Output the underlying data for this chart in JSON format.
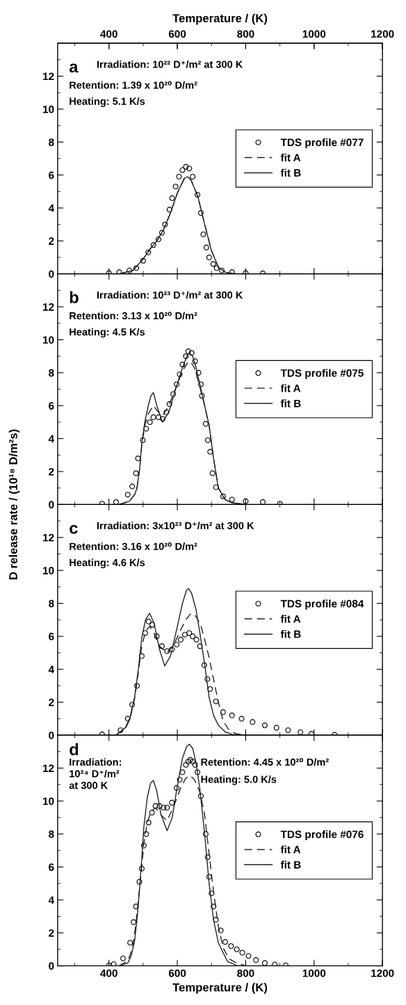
{
  "chart_data": [
    {
      "type": "line",
      "xlim": [
        250,
        1200
      ],
      "x2lim": [
        250,
        1200
      ],
      "x2ticks": [
        400,
        600,
        800,
        1000,
        1200
      ],
      "x2label": "Temperature / (K)",
      "tick_labels": "y",
      "ylim": [
        0,
        14
      ],
      "yticks": [
        0,
        2,
        4,
        6,
        8,
        10,
        12
      ],
      "legend": "right",
      "annotations": [
        "a",
        "Irradiation: 10²² D⁺/m² at 300 K",
        "Retention: 1.39 x 10²⁰ D/m²",
        "Heating: 5.1 K/s"
      ],
      "series": [
        {
          "name": "TDS profile #077",
          "type": "scatter",
          "marker": "circle",
          "color": "#000000",
          "x": [
            400,
            430,
            460,
            480,
            500,
            515,
            530,
            545,
            555,
            564,
            577,
            585,
            595,
            605,
            615,
            625,
            635,
            645,
            659,
            669,
            676,
            685,
            693,
            705,
            715,
            730,
            760,
            800,
            850
          ],
          "values": [
            0.05,
            0.1,
            0.2,
            0.35,
            0.8,
            1.3,
            1.75,
            2.1,
            2.5,
            3.0,
            3.9,
            4.6,
            5.3,
            5.9,
            6.3,
            6.5,
            6.4,
            5.9,
            4.8,
            3.7,
            2.4,
            1.6,
            1.0,
            0.6,
            0.35,
            0.2,
            0.1,
            0.05,
            0.03
          ]
        },
        {
          "name": "fit A",
          "line_style": "dashed",
          "color": "#222222",
          "x": [
            430,
            470,
            500,
            520,
            540,
            560,
            580,
            600,
            620,
            630,
            640,
            660,
            680,
            700,
            720,
            740,
            770,
            1000
          ],
          "values": [
            0,
            0.2,
            0.9,
            1.5,
            2.0,
            2.7,
            3.7,
            4.9,
            5.75,
            5.85,
            5.7,
            4.7,
            3.0,
            1.4,
            0.4,
            0.1,
            0,
            0
          ]
        },
        {
          "name": "fit B",
          "line_style": "solid",
          "color": "#222222",
          "x": [
            430,
            470,
            500,
            520,
            540,
            560,
            580,
            600,
            620,
            630,
            640,
            660,
            680,
            700,
            720,
            740,
            770,
            1000
          ],
          "values": [
            0,
            0.2,
            0.9,
            1.5,
            2.0,
            2.7,
            3.7,
            4.9,
            5.8,
            5.9,
            5.7,
            4.7,
            3.0,
            1.4,
            0.4,
            0.1,
            0,
            0
          ]
        }
      ]
    },
    {
      "type": "line",
      "xlim": [
        250,
        1200
      ],
      "tick_labels": "y",
      "ylim": [
        0,
        14
      ],
      "yticks": [
        0,
        2,
        4,
        6,
        8,
        10,
        12
      ],
      "ylabel": "D release rate / (10¹⁸ D/m²s)",
      "legend": "right",
      "annotations": [
        "b",
        "Irradiation: 10²³ D⁺/m² at 300 K",
        "Retention: 3.13 x 10²⁰ D/m²",
        "Heating: 4.5 K/s"
      ],
      "series": [
        {
          "name": "TDS profile #075",
          "type": "scatter",
          "marker": "circle",
          "color": "#000000",
          "x": [
            380,
            421,
            455,
            468,
            479,
            485,
            499,
            509,
            520,
            530,
            545,
            557,
            568,
            577,
            588,
            598,
            607,
            615,
            625,
            632,
            642,
            652,
            662,
            669,
            672,
            683,
            689,
            696,
            703,
            713,
            734,
            760,
            800,
            850,
            900
          ],
          "values": [
            0.05,
            0.15,
            0.6,
            1.1,
            1.9,
            2.8,
            3.9,
            4.6,
            5.0,
            5.3,
            5.3,
            5.2,
            5.6,
            6.1,
            6.7,
            7.3,
            7.9,
            8.5,
            9.0,
            9.3,
            9.2,
            8.7,
            8.0,
            7.3,
            6.6,
            4.9,
            3.9,
            3.2,
            1.9,
            1.05,
            0.5,
            0.3,
            0.2,
            0.15,
            0.05
          ]
        },
        {
          "name": "fit A",
          "line_style": "dashed",
          "color": "#222222",
          "x": [
            430,
            460,
            475,
            482,
            490,
            496,
            505,
            515,
            530,
            545,
            557,
            575,
            598,
            615,
            630,
            638,
            650,
            665,
            680,
            693,
            706,
            720,
            740,
            760,
            800
          ],
          "values": [
            0,
            0.2,
            0.6,
            1.0,
            2.2,
            3.6,
            4.8,
            5.5,
            6.0,
            5.6,
            5.4,
            6.0,
            7.2,
            8.1,
            8.6,
            8.7,
            8.3,
            7.2,
            6.0,
            4.8,
            2.8,
            1.0,
            0.3,
            0.1,
            0
          ]
        },
        {
          "name": "fit B",
          "line_style": "solid",
          "color": "#222222",
          "x": [
            430,
            460,
            475,
            482,
            490,
            496,
            505,
            515,
            523,
            530,
            540,
            557,
            575,
            598,
            615,
            630,
            635,
            645,
            655,
            667,
            680,
            693,
            706,
            720,
            740,
            760,
            800
          ],
          "values": [
            0,
            0.2,
            0.6,
            1.0,
            2.2,
            3.7,
            5.0,
            6.0,
            6.6,
            6.8,
            6.0,
            5.0,
            5.6,
            7.2,
            8.3,
            9.1,
            9.2,
            9.0,
            8.3,
            7.2,
            6.0,
            4.8,
            2.8,
            1.0,
            0.3,
            0.1,
            0
          ]
        }
      ]
    },
    {
      "type": "line",
      "xlim": [
        250,
        1200
      ],
      "tick_labels": "y",
      "ylim": [
        0,
        14
      ],
      "yticks": [
        0,
        2,
        4,
        6,
        8,
        10,
        12
      ],
      "legend": "right",
      "annotations": [
        "c",
        "Irradiation: 3x10²³ D⁺/m² at 300 K",
        "Retention: 3.16 x 10²⁰ D/m²",
        "Heating: 4.6 K/s"
      ],
      "series": [
        {
          "name": "TDS profile #084",
          "type": "scatter",
          "marker": "circle",
          "color": "#000000",
          "x": [
            380,
            434,
            455,
            468,
            482,
            496,
            506,
            516,
            527,
            540,
            555,
            570,
            584,
            598,
            610,
            622,
            635,
            645,
            656,
            666,
            679,
            688,
            696,
            713,
            734,
            760,
            788,
            820,
            856,
            890,
            924,
            960,
            992,
            1060
          ],
          "values": [
            0.05,
            0.3,
            1.0,
            1.85,
            3.0,
            4.8,
            6.2,
            6.9,
            6.7,
            6.0,
            5.4,
            5.1,
            5.2,
            5.5,
            5.8,
            6.1,
            6.2,
            6.0,
            5.8,
            5.4,
            4.25,
            3.4,
            2.8,
            2.05,
            1.4,
            1.2,
            1.0,
            0.8,
            0.6,
            0.45,
            0.3,
            0.18,
            0.08,
            0.02
          ]
        },
        {
          "name": "fit A",
          "line_style": "dashed",
          "color": "#222222",
          "x": [
            420,
            448,
            462,
            475,
            486,
            496,
            507,
            519,
            532,
            548,
            570,
            590,
            610,
            625,
            638,
            645,
            655,
            668,
            679,
            692,
            706,
            720,
            734,
            750,
            770,
            800
          ],
          "values": [
            0,
            0.4,
            1.0,
            2.2,
            3.8,
            5.4,
            6.3,
            6.6,
            6.2,
            5.4,
            5.0,
            5.5,
            6.4,
            7.0,
            7.35,
            7.4,
            7.2,
            6.7,
            5.9,
            4.8,
            3.4,
            2.0,
            0.85,
            0.35,
            0.1,
            0
          ]
        },
        {
          "name": "fit B",
          "line_style": "solid",
          "color": "#222222",
          "x": [
            420,
            448,
            462,
            475,
            486,
            496,
            507,
            519,
            532,
            548,
            563,
            580,
            598,
            615,
            627,
            633,
            642,
            655,
            666,
            680,
            693,
            706,
            720,
            740,
            761,
            800
          ],
          "values": [
            0,
            0.45,
            1.1,
            2.3,
            4.0,
            5.9,
            7.0,
            7.4,
            6.8,
            5.2,
            4.2,
            4.8,
            6.4,
            8.0,
            8.8,
            8.9,
            8.6,
            7.6,
            6.2,
            4.3,
            2.3,
            1.2,
            0.6,
            0.2,
            0.05,
            0
          ]
        }
      ]
    },
    {
      "type": "line",
      "xlim": [
        250,
        1200
      ],
      "xticks": [
        400,
        600,
        800,
        1000,
        1200
      ],
      "xlabel": "Temperature / (K)",
      "ylim": [
        0,
        14
      ],
      "yticks": [
        0,
        2,
        4,
        6,
        8,
        10,
        12
      ],
      "legend": "right",
      "annotations": [
        "d",
        "Irradiation:\n10²⁴ D⁺/m²\nat 300 K",
        "Retention: 4.45 x 10²⁰ D/m²",
        "Heating: 5.0 K/s"
      ],
      "series": [
        {
          "name": "TDS profile #076",
          "type": "scatter",
          "marker": "circle",
          "color": "#000000",
          "x": [
            400,
            414,
            441,
            462,
            472,
            479,
            489,
            496,
            502,
            509,
            516,
            526,
            536,
            548,
            560,
            570,
            584,
            598,
            607,
            615,
            625,
            632,
            638,
            645,
            652,
            659,
            669,
            683,
            689,
            693,
            700,
            706,
            713,
            727,
            740,
            757,
            774,
            790,
            808,
            830,
            856,
            885,
            917
          ],
          "values": [
            0.02,
            0.1,
            0.45,
            1.4,
            2.65,
            3.6,
            5.1,
            5.9,
            7.3,
            8.0,
            8.7,
            9.3,
            9.7,
            9.7,
            9.6,
            9.6,
            9.9,
            10.8,
            11.3,
            11.75,
            12.2,
            12.4,
            12.5,
            12.4,
            12.2,
            11.75,
            10.3,
            8.0,
            6.6,
            5.4,
            4.4,
            3.6,
            2.8,
            2.15,
            1.45,
            1.2,
            1.0,
            0.8,
            0.6,
            0.35,
            0.17,
            0.08,
            0.03
          ]
        },
        {
          "name": "fit A",
          "line_style": "dashed",
          "color": "#222222",
          "x": [
            430,
            455,
            468,
            478,
            489,
            496,
            502,
            512,
            522,
            536,
            550,
            570,
            590,
            610,
            625,
            638,
            650,
            665,
            679,
            693,
            706,
            720,
            734,
            750,
            770,
            800
          ],
          "values": [
            0,
            0.3,
            1.0,
            2.4,
            4.6,
            6.0,
            7.4,
            8.7,
            9.3,
            9.6,
            9.2,
            8.8,
            9.7,
            10.8,
            11.4,
            11.55,
            11.3,
            10.6,
            9.3,
            6.8,
            4.5,
            2.4,
            1.1,
            0.45,
            0.2,
            0
          ]
        },
        {
          "name": "fit B",
          "line_style": "solid",
          "color": "#222222",
          "x": [
            430,
            455,
            465,
            475,
            482,
            489,
            496,
            502,
            512,
            522,
            530,
            540,
            552,
            570,
            585,
            600,
            615,
            627,
            635,
            645,
            655,
            666,
            680,
            693,
            706,
            720,
            747,
            774,
            800
          ],
          "values": [
            0,
            0.17,
            0.6,
            1.5,
            2.8,
            4.5,
            6.5,
            8.4,
            10.2,
            11.1,
            11.25,
            10.6,
            9.2,
            8.2,
            9.0,
            10.9,
            12.6,
            13.3,
            13.45,
            13.2,
            12.3,
            10.7,
            8.0,
            5.0,
            2.8,
            1.4,
            0.25,
            0.02,
            0
          ]
        }
      ]
    }
  ]
}
